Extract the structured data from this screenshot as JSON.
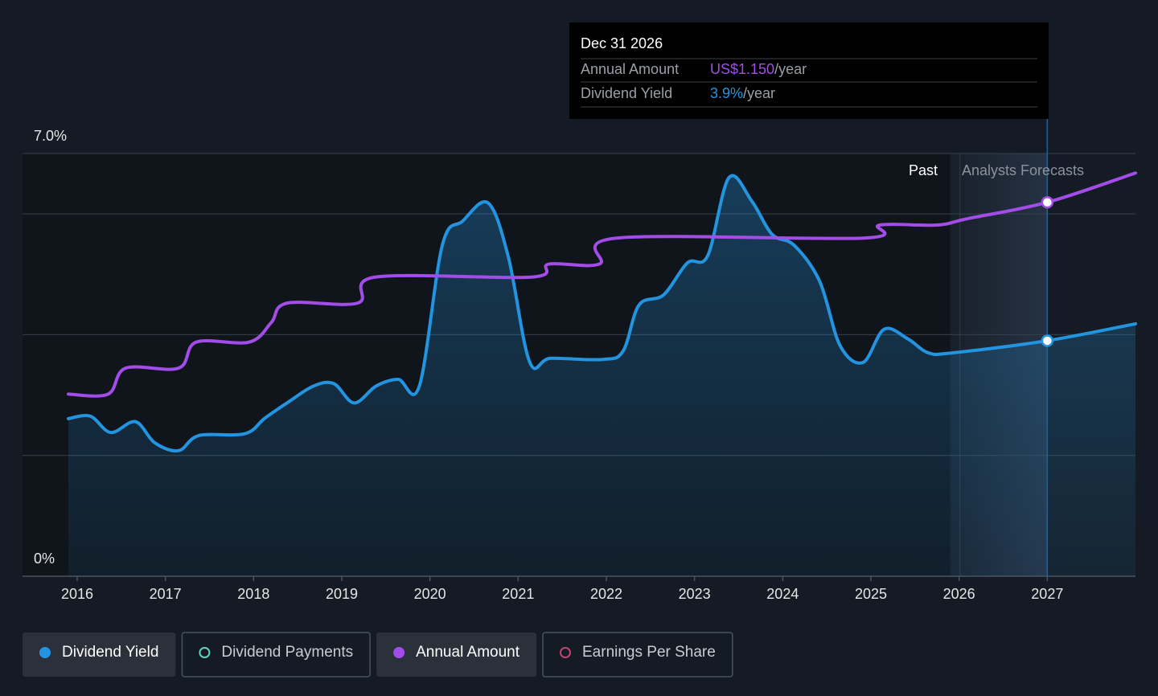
{
  "chart_data": {
    "type": "line",
    "xlim": [
      2015.38,
      2028
    ],
    "xticks": [
      2016,
      2017,
      2018,
      2019,
      2020,
      2021,
      2022,
      2023,
      2024,
      2025,
      2026,
      2027
    ],
    "ylim": [
      0,
      7
    ],
    "yticks": [
      {
        "value": 0,
        "label": "0%"
      },
      {
        "value": 7,
        "label": "7.0%"
      }
    ],
    "gridlines": [
      2,
      4,
      6,
      7
    ],
    "y2lim": [
      0,
      1.3
    ],
    "forecast_start": 2025.9,
    "past_label": "Past",
    "forecast_label": "Analysts Forecasts",
    "series": [
      {
        "name": "Dividend Yield",
        "color": "#2394df",
        "area": true,
        "x": [
          2015.9,
          2016.15,
          2016.38,
          2016.66,
          2016.88,
          2017.15,
          2017.38,
          2017.9,
          2018.13,
          2018.4,
          2018.68,
          2018.91,
          2019.14,
          2019.39,
          2019.64,
          2019.88,
          2020.14,
          2020.37,
          2020.66,
          2020.89,
          2021.13,
          2021.37,
          2021.96,
          2022.19,
          2022.37,
          2022.65,
          2022.92,
          2023.15,
          2023.39,
          2023.65,
          2023.88,
          2024.13,
          2024.42,
          2024.65,
          2024.91,
          2025.15,
          2025.42,
          2025.65,
          2025.93,
          2027.0,
          2028.0
        ],
        "values": [
          2.61,
          2.65,
          2.38,
          2.56,
          2.21,
          2.08,
          2.33,
          2.36,
          2.62,
          2.89,
          3.15,
          3.19,
          2.87,
          3.15,
          3.26,
          3.15,
          5.48,
          5.88,
          6.18,
          5.28,
          3.55,
          3.61,
          3.59,
          3.73,
          4.49,
          4.66,
          5.19,
          5.31,
          6.6,
          6.21,
          5.66,
          5.48,
          4.88,
          3.82,
          3.54,
          4.09,
          3.93,
          3.7,
          3.7,
          3.9,
          4.18
        ]
      },
      {
        "name": "Annual Amount",
        "color": "#a24de8",
        "axis": "y2",
        "x": [
          2015.9,
          2016.35,
          2016.55,
          2017.15,
          2017.35,
          2017.95,
          2018.2,
          2018.38,
          2019.18,
          2019.38,
          2021.15,
          2021.35,
          2021.92,
          2022.12,
          2024.92,
          2025.1,
          2025.75,
          2026.1,
          2027.0,
          2028.0
        ],
        "values": [
          0.56,
          0.56,
          0.64,
          0.64,
          0.72,
          0.72,
          0.78,
          0.84,
          0.84,
          0.92,
          0.92,
          0.96,
          0.96,
          1.04,
          1.04,
          1.08,
          1.08,
          1.1,
          1.15,
          1.24
        ]
      }
    ],
    "other_legend_items": [
      {
        "name": "Dividend Payments",
        "color": "#5ed3c3"
      },
      {
        "name": "Earnings Per Share",
        "color": "#c2466f"
      }
    ],
    "highlight_x": 2027.0,
    "tooltip": {
      "title": "Dec 31 2026",
      "rows": [
        {
          "label": "Annual Amount",
          "value_label": "US$1.150",
          "unit": "/year",
          "series": 1
        },
        {
          "label": "Dividend Yield",
          "value_label": "3.9%",
          "unit": "/year",
          "series": 0
        }
      ]
    }
  }
}
